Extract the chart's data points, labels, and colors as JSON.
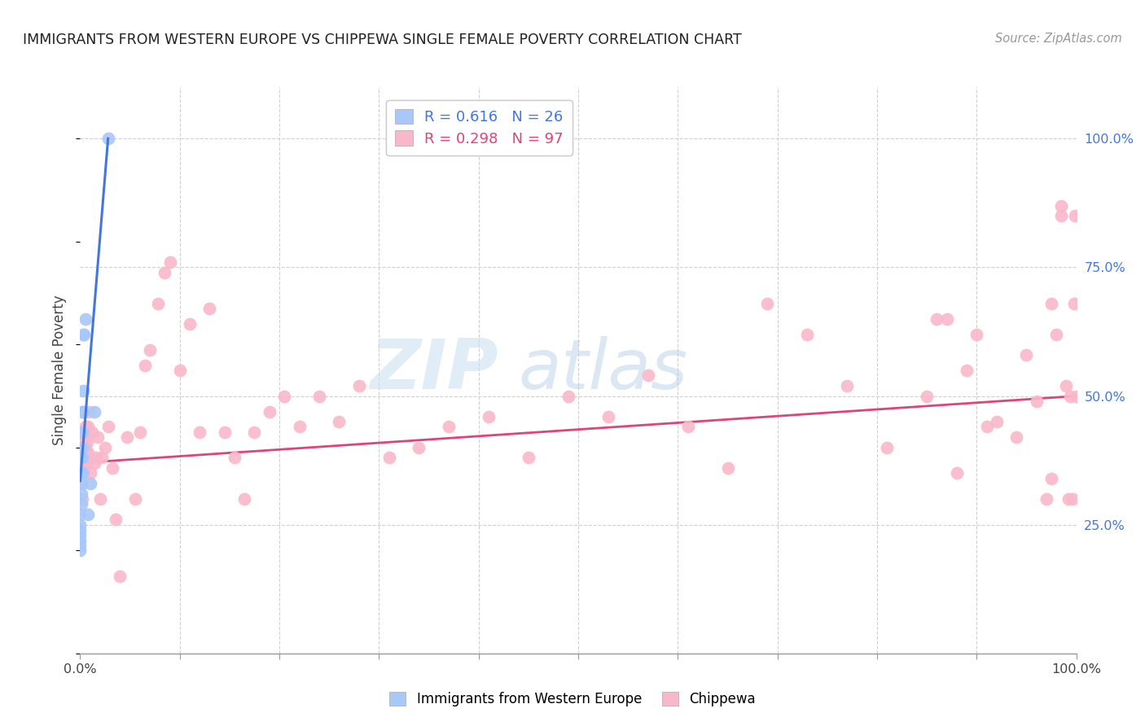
{
  "title": "IMMIGRANTS FROM WESTERN EUROPE VS CHIPPEWA SINGLE FEMALE POVERTY CORRELATION CHART",
  "source": "Source: ZipAtlas.com",
  "ylabel": "Single Female Poverty",
  "blue_R": 0.616,
  "blue_N": 26,
  "pink_R": 0.298,
  "pink_N": 97,
  "blue_color": "#a8c8fa",
  "pink_color": "#f9b8ca",
  "blue_line_color": "#4477dd",
  "pink_line_color": "#dd4477",
  "watermark_zip": "ZIP",
  "watermark_atlas": "atlas",
  "blue_points_x": [
    0.0,
    0.0,
    0.0,
    0.0,
    0.0,
    0.0,
    0.0,
    0.001,
    0.001,
    0.001,
    0.001,
    0.001,
    0.002,
    0.002,
    0.002,
    0.002,
    0.002,
    0.003,
    0.003,
    0.003,
    0.004,
    0.005,
    0.008,
    0.01,
    0.014,
    0.028
  ],
  "blue_points_y": [
    0.2,
    0.21,
    0.22,
    0.23,
    0.24,
    0.25,
    0.27,
    0.29,
    0.31,
    0.33,
    0.35,
    0.38,
    0.35,
    0.38,
    0.4,
    0.43,
    0.47,
    0.47,
    0.51,
    0.62,
    0.62,
    0.65,
    0.27,
    0.33,
    0.47,
    1.0
  ],
  "pink_points_x": [
    0.0,
    0.001,
    0.001,
    0.001,
    0.001,
    0.002,
    0.002,
    0.002,
    0.002,
    0.003,
    0.003,
    0.003,
    0.003,
    0.004,
    0.004,
    0.005,
    0.005,
    0.005,
    0.006,
    0.006,
    0.007,
    0.007,
    0.008,
    0.008,
    0.009,
    0.01,
    0.012,
    0.014,
    0.016,
    0.018,
    0.02,
    0.022,
    0.025,
    0.028,
    0.032,
    0.036,
    0.04,
    0.047,
    0.055,
    0.06,
    0.065,
    0.07,
    0.078,
    0.085,
    0.09,
    0.1,
    0.11,
    0.12,
    0.13,
    0.145,
    0.155,
    0.165,
    0.175,
    0.19,
    0.205,
    0.22,
    0.24,
    0.26,
    0.28,
    0.31,
    0.34,
    0.37,
    0.41,
    0.45,
    0.49,
    0.53,
    0.57,
    0.61,
    0.65,
    0.69,
    0.73,
    0.77,
    0.81,
    0.85,
    0.86,
    0.87,
    0.88,
    0.89,
    0.9,
    0.91,
    0.92,
    0.94,
    0.95,
    0.96,
    0.97,
    0.975,
    0.98,
    0.985,
    0.99,
    0.992,
    0.994,
    0.996,
    0.998,
    0.999,
    1.0,
    0.985,
    0.975
  ],
  "pink_points_y": [
    0.37,
    0.38,
    0.4,
    0.37,
    0.36,
    0.3,
    0.33,
    0.37,
    0.42,
    0.36,
    0.38,
    0.4,
    0.35,
    0.35,
    0.42,
    0.38,
    0.4,
    0.44,
    0.37,
    0.42,
    0.38,
    0.41,
    0.39,
    0.44,
    0.47,
    0.35,
    0.43,
    0.37,
    0.38,
    0.42,
    0.3,
    0.38,
    0.4,
    0.44,
    0.36,
    0.26,
    0.15,
    0.42,
    0.3,
    0.43,
    0.56,
    0.59,
    0.68,
    0.74,
    0.76,
    0.55,
    0.64,
    0.43,
    0.67,
    0.43,
    0.38,
    0.3,
    0.43,
    0.47,
    0.5,
    0.44,
    0.5,
    0.45,
    0.52,
    0.38,
    0.4,
    0.44,
    0.46,
    0.38,
    0.5,
    0.46,
    0.54,
    0.44,
    0.36,
    0.68,
    0.62,
    0.52,
    0.4,
    0.5,
    0.65,
    0.65,
    0.35,
    0.55,
    0.62,
    0.44,
    0.45,
    0.42,
    0.58,
    0.49,
    0.3,
    0.34,
    0.62,
    0.87,
    0.52,
    0.3,
    0.5,
    0.3,
    0.68,
    0.85,
    0.5,
    0.85,
    0.68
  ],
  "blue_line_x": [
    0.0,
    0.028
  ],
  "blue_line_y": [
    0.335,
    1.0
  ],
  "pink_line_x": [
    0.0,
    1.0
  ],
  "pink_line_y": [
    0.37,
    0.5
  ],
  "background_color": "#ffffff",
  "grid_color": "#d0d0d0",
  "x_ticks": [
    0.0,
    0.1,
    0.2,
    0.3,
    0.4,
    0.5,
    0.6,
    0.7,
    0.8,
    0.9,
    1.0
  ],
  "y_ticks_right": [
    0.25,
    0.5,
    0.75,
    1.0
  ],
  "y_tick_labels_right": [
    "25.0%",
    "50.0%",
    "75.0%",
    "100.0%"
  ]
}
